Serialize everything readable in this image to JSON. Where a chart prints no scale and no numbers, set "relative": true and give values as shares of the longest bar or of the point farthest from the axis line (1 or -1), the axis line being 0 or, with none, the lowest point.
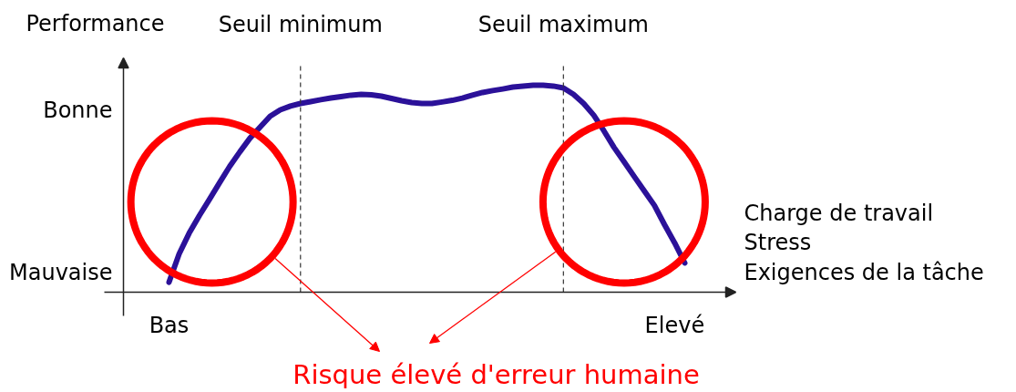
{
  "chart_data": {
    "type": "line",
    "relative": true,
    "ylabel": "Performance",
    "xlabel": "Charge de travail\nStress\nExigences de la tâche",
    "categories": [
      "Bas",
      null,
      null,
      null,
      null,
      null,
      null,
      null,
      null,
      null,
      null,
      null,
      null,
      "Seuil minimum",
      null,
      null,
      null,
      null,
      null,
      null,
      null,
      null,
      null,
      null,
      null,
      null,
      null,
      null,
      null,
      null,
      null,
      null,
      null,
      null,
      null,
      null,
      null,
      null,
      null,
      "Seuil maximum",
      null,
      null,
      null,
      null,
      null,
      null,
      null,
      null,
      null,
      null,
      "Elevé",
      null
    ],
    "values": [
      0.048,
      0.185,
      0.286,
      0.37,
      0.449,
      0.529,
      0.608,
      0.678,
      0.744,
      0.797,
      0.85,
      0.881,
      0.899,
      0.912,
      0.921,
      0.93,
      0.938,
      0.945,
      0.952,
      0.956,
      0.954,
      0.947,
      0.936,
      0.925,
      0.916,
      0.912,
      0.912,
      0.919,
      0.927,
      0.938,
      0.952,
      0.965,
      0.974,
      0.982,
      0.991,
      0.996,
      1.0,
      1.0,
      0.996,
      0.987,
      0.956,
      0.912,
      0.855,
      0.78,
      0.7,
      0.63,
      0.559,
      0.489,
      0.419,
      0.326,
      0.238,
      0.141
    ],
    "color": "#2b1199",
    "annotations": [
      "Bonne",
      "Mauvaise",
      "Risque élevé d'erreur humaine"
    ],
    "ref_lines": [
      {
        "axis": "x",
        "value": "Seuil minimum",
        "color": "#333333",
        "line_style": "dashed"
      },
      {
        "axis": "x",
        "value": "Seuil maximum",
        "color": "#333333",
        "line_style": "dashed"
      }
    ],
    "marker": "none",
    "line_style": "solid"
  }
}
